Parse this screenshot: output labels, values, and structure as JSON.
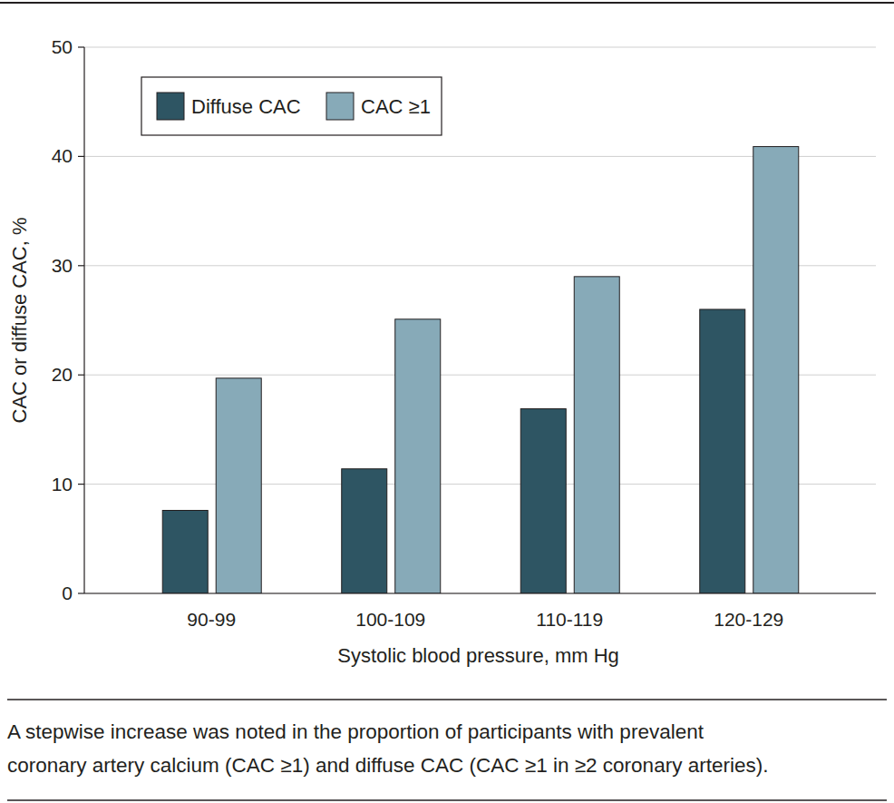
{
  "chart_data": {
    "type": "bar",
    "categories": [
      "90-99",
      "100-109",
      "110-119",
      "120-129"
    ],
    "series": [
      {
        "name": "Diffuse CAC",
        "color": "#2e5563",
        "values": [
          7.6,
          11.4,
          16.9,
          26.0
        ]
      },
      {
        "name": "CAC ≥1",
        "color": "#87aab8",
        "values": [
          19.7,
          25.1,
          29.0,
          40.9
        ]
      }
    ],
    "x_label": "Systolic blood pressure, mm Hg",
    "y_label": "CAC or diffuse CAC, %",
    "ylim": [
      0,
      50
    ],
    "yticks": [
      0,
      10,
      20,
      30,
      40,
      50
    ],
    "grid": true,
    "legend": "upper left",
    "caption": [
      "A stepwise increase was noted in the proportion of participants with prevalent",
      "coronary artery calcium (CAC ≥1) and diffuse CAC (CAC ≥1 in ≥2 coronary arteries)."
    ]
  }
}
